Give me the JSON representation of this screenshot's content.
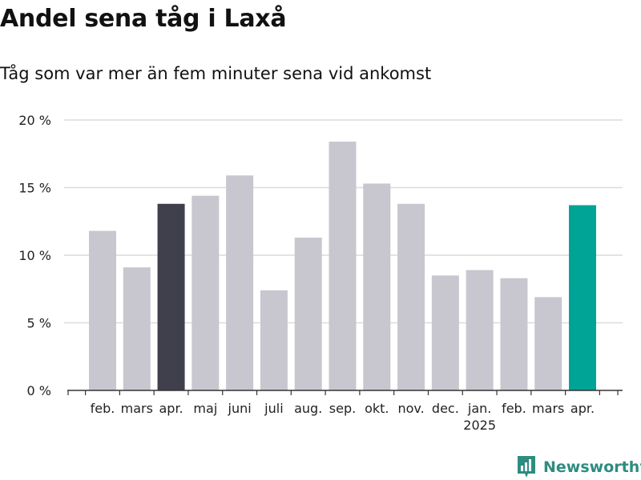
{
  "header": {
    "title": "Andel sena tåg i Laxå",
    "subtitle": "Tåg som var mer än fem minuter sena vid ankomst"
  },
  "brand": {
    "name": "Newsworthy",
    "icon": "newsworthy-logo-icon",
    "color": "#2e8c80"
  },
  "colors": {
    "default": "#c8c7cf",
    "previous_year": "#403f4c",
    "current": "#00a496",
    "grid": "#dcdcdc",
    "axis": "#333333"
  },
  "chart_data": {
    "type": "bar",
    "title": "Andel sena tåg i Laxå",
    "subtitle": "Tåg som var mer än fem minuter sena vid ankomst",
    "xlabel": "",
    "ylabel": "",
    "ylim": [
      0,
      20
    ],
    "yticks": [
      0,
      5,
      10,
      15,
      20
    ],
    "ytick_labels": [
      "0 %",
      "5 %",
      "10 %",
      "15 %",
      "20 %"
    ],
    "grid": true,
    "categories": [
      "feb.",
      "mars",
      "apr.",
      "maj",
      "juni",
      "juli",
      "aug.",
      "sep.",
      "okt.",
      "nov.",
      "dec.",
      "jan.",
      "feb.",
      "mars",
      "apr."
    ],
    "year_label": {
      "text": "2025",
      "category_index": 11
    },
    "values": [
      11.8,
      9.1,
      13.8,
      14.4,
      15.9,
      7.4,
      11.3,
      18.4,
      15.3,
      13.8,
      8.5,
      8.9,
      8.3,
      6.9,
      13.7
    ],
    "highlight": {
      "previous_year_index": 2,
      "current_index": 14
    }
  }
}
